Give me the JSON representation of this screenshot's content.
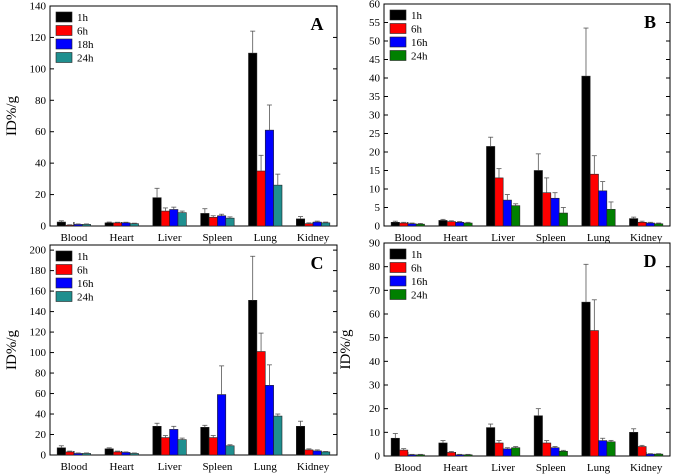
{
  "chart_data": [
    {
      "type": "bar",
      "panel_letter": "A",
      "ylabel": "ID%/g",
      "xlabel": "",
      "ylim": [
        0,
        140
      ],
      "yticks": [
        0,
        20,
        40,
        60,
        80,
        100,
        120,
        140
      ],
      "categories": [
        "Blood",
        "Heart",
        "Liver",
        "Spleen",
        "Lung",
        "Kidney"
      ],
      "series": [
        {
          "name": "1h",
          "color": "#000000",
          "values": [
            2.5,
            2.0,
            18,
            8,
            110,
            4.5
          ],
          "errors": [
            0.8,
            0.5,
            6,
            3,
            14,
            1.5
          ]
        },
        {
          "name": "6h",
          "color": "#ff0000",
          "values": [
            0.5,
            2.0,
            9.5,
            5.5,
            35,
            1.5
          ],
          "errors": [
            0.3,
            0.4,
            2,
            1,
            10,
            0.5
          ]
        },
        {
          "name": "18h",
          "color": "#0000ff",
          "values": [
            1.0,
            2.0,
            10.5,
            6.5,
            61,
            2.5
          ],
          "errors": [
            0.3,
            0.4,
            1.5,
            1,
            16,
            0.6
          ]
        },
        {
          "name": "24h",
          "color": "#1f8f8f",
          "values": [
            1.0,
            1.5,
            8.5,
            5.0,
            26,
            2.0
          ],
          "errors": [
            0.3,
            0.3,
            1,
            0.8,
            7,
            0.5
          ]
        }
      ],
      "grid": false,
      "legend": "top-left"
    },
    {
      "type": "bar",
      "panel_letter": "B",
      "ylabel": "",
      "xlabel": "",
      "ylim": [
        0,
        60
      ],
      "yticks": [
        0,
        5,
        10,
        15,
        20,
        25,
        30,
        35,
        40,
        45,
        50,
        55,
        60
      ],
      "categories": [
        "Blood",
        "Heart",
        "Liver",
        "Spleen",
        "Lung",
        "Kidney"
      ],
      "series": [
        {
          "name": "1h",
          "color": "#000000",
          "values": [
            1.0,
            1.5,
            21.5,
            15,
            40.5,
            2.0
          ],
          "errors": [
            0.3,
            0.3,
            2.5,
            4.5,
            13,
            0.4
          ]
        },
        {
          "name": "6h",
          "color": "#ff0000",
          "values": [
            0.8,
            1.2,
            13,
            9,
            14,
            1.0
          ],
          "errors": [
            0.2,
            0.2,
            2.5,
            4,
            5,
            0.3
          ]
        },
        {
          "name": "16h",
          "color": "#0000ff",
          "values": [
            0.6,
            1.0,
            7,
            7.5,
            9.5,
            0.8
          ],
          "errors": [
            0.2,
            0.2,
            1.5,
            1.5,
            2.5,
            0.2
          ]
        },
        {
          "name": "24h",
          "color": "#008000",
          "values": [
            0.5,
            0.8,
            5.5,
            3.5,
            4.5,
            0.6
          ],
          "errors": [
            0.2,
            0.2,
            0.5,
            1.5,
            2,
            0.2
          ]
        }
      ],
      "grid": false,
      "legend": "top-left"
    },
    {
      "type": "bar",
      "panel_letter": "C",
      "ylabel": "ID%/g",
      "xlabel": "",
      "ylim": [
        0,
        205
      ],
      "yticks": [
        0,
        20,
        40,
        60,
        80,
        100,
        120,
        140,
        160,
        180,
        200
      ],
      "categories": [
        "Blood",
        "Heart",
        "Liver",
        "Spleen",
        "Lung",
        "Kidney"
      ],
      "series": [
        {
          "name": "1h",
          "color": "#000000",
          "values": [
            7,
            6,
            28,
            27,
            151,
            28
          ],
          "errors": [
            2,
            1,
            3,
            2,
            43,
            5
          ]
        },
        {
          "name": "6h",
          "color": "#ff0000",
          "values": [
            3,
            3,
            17,
            17,
            101,
            5
          ],
          "errors": [
            0.8,
            0.8,
            2,
            2,
            18,
            1
          ]
        },
        {
          "name": "16h",
          "color": "#0000ff",
          "values": [
            1.5,
            2.5,
            25,
            59,
            68,
            4
          ],
          "errors": [
            0.5,
            0.5,
            3,
            28,
            20,
            1
          ]
        },
        {
          "name": "24h",
          "color": "#1f8f8f",
          "values": [
            1.5,
            1.5,
            15,
            9,
            38,
            3
          ],
          "errors": [
            0.5,
            0.5,
            1.5,
            1,
            2,
            0.5
          ]
        }
      ],
      "grid": false,
      "legend": "top-left"
    },
    {
      "type": "bar",
      "panel_letter": "D",
      "ylabel": "ID%/g",
      "xlabel": "",
      "ylim": [
        0,
        90
      ],
      "yticks": [
        0,
        10,
        20,
        30,
        40,
        50,
        60,
        70,
        80,
        90
      ],
      "categories": [
        "Blood",
        "Heart",
        "Liver",
        "Spleen",
        "Lung",
        "Kidney"
      ],
      "series": [
        {
          "name": "1h",
          "color": "#000000",
          "values": [
            7.5,
            5.5,
            12,
            17,
            65,
            10
          ],
          "errors": [
            2,
            1,
            1.5,
            3,
            16,
            1.5
          ]
        },
        {
          "name": "6h",
          "color": "#ff0000",
          "values": [
            2.5,
            1.5,
            5.5,
            5.5,
            53,
            4
          ],
          "errors": [
            0.6,
            0.4,
            1,
            1,
            13,
            0.5
          ]
        },
        {
          "name": "16h",
          "color": "#0000ff",
          "values": [
            0.5,
            0.5,
            3,
            3.5,
            6.5,
            0.8
          ],
          "errors": [
            0.2,
            0.2,
            0.5,
            0.5,
            1,
            0.2
          ]
        },
        {
          "name": "24h",
          "color": "#008000",
          "values": [
            0.5,
            0.5,
            3.5,
            2,
            6,
            0.8
          ],
          "errors": [
            0.2,
            0.2,
            0.5,
            0.4,
            0.6,
            0.2
          ]
        }
      ],
      "grid": false,
      "legend": "top-left"
    }
  ]
}
